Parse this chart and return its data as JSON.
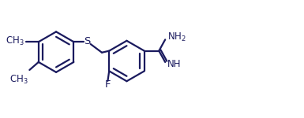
{
  "bg_color": "#ffffff",
  "line_color": "#1a1a5e",
  "line_width": 1.6,
  "font_size": 8.5,
  "figsize": [
    3.85,
    1.5
  ],
  "dpi": 100,
  "xlim": [
    0,
    10.5
  ],
  "ylim": [
    0,
    4.2
  ]
}
